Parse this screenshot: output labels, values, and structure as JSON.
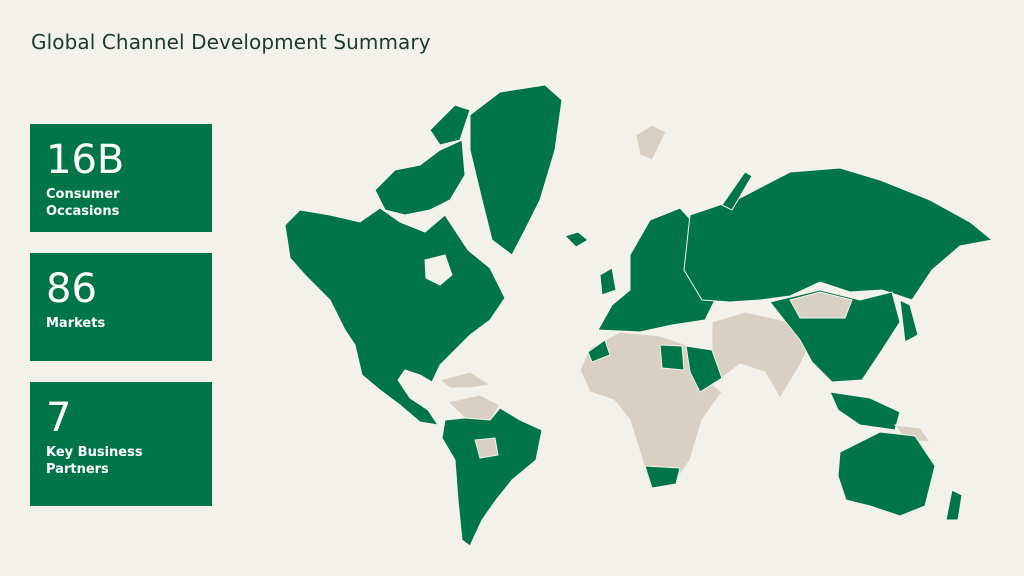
{
  "title": "Global Channel Development Summary",
  "stats": [
    {
      "value": "16B",
      "label": "Consumer Occasions"
    },
    {
      "value": "86",
      "label": "Markets"
    },
    {
      "value": "7",
      "label": "Key Business Partners"
    }
  ],
  "colors": {
    "background": "#F3F1EC",
    "active_market": "#00754A",
    "other_market": "#D9D0C4",
    "title": "#1E3932"
  }
}
